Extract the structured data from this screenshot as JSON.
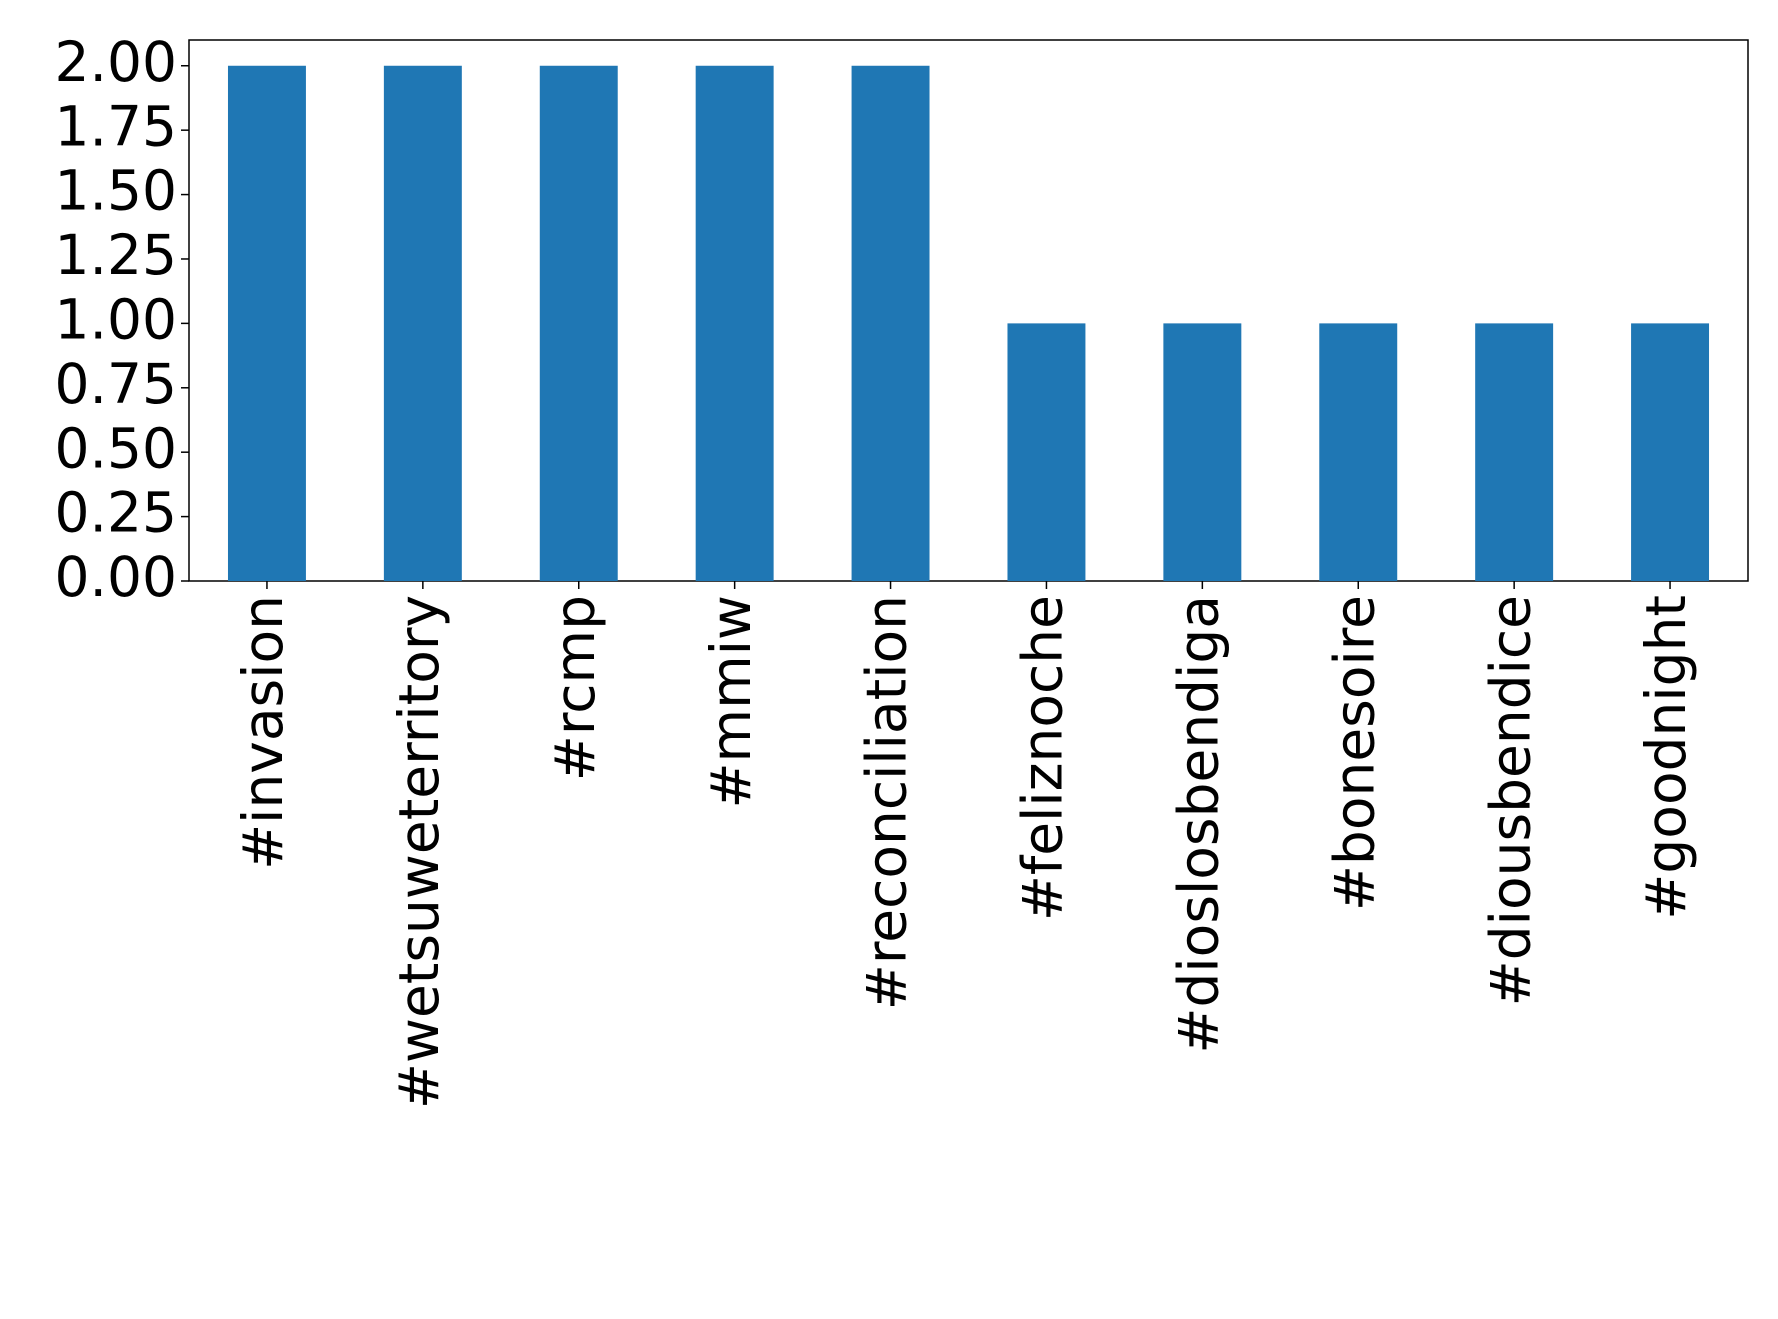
{
  "chart_data": {
    "type": "bar",
    "categories": [
      "#invasion",
      "#wetsuweterritory",
      "#rcmp",
      "#mmiw",
      "#reconciliation",
      "#feliznoche",
      "#dioslosbendiga",
      "#bonesoire",
      "#diousbendice",
      "#goodnight"
    ],
    "values": [
      2,
      2,
      2,
      2,
      2,
      1,
      1,
      1,
      1,
      1
    ],
    "color": "#1f77b4",
    "ylim": [
      0,
      2.1
    ],
    "yticks": [
      {
        "value": 0,
        "label": "0.00"
      },
      {
        "value": 0.25,
        "label": "0.25"
      },
      {
        "value": 0.5,
        "label": "0.50"
      },
      {
        "value": 0.75,
        "label": "0.75"
      },
      {
        "value": 1,
        "label": "1.00"
      },
      {
        "value": 1.25,
        "label": "1.25"
      },
      {
        "value": 1.5,
        "label": "1.50"
      },
      {
        "value": 1.75,
        "label": "1.75"
      },
      {
        "value": 2,
        "label": "2.00"
      }
    ],
    "grid": false
  }
}
